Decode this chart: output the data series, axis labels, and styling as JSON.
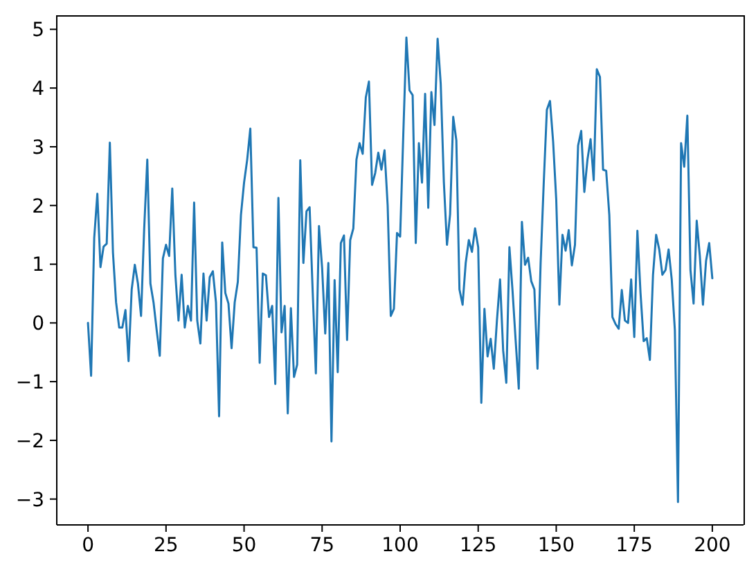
{
  "chart_data": {
    "type": "line",
    "color": "#1f77b4",
    "line_style": "solid",
    "grid": false,
    "legend": false,
    "xlim": [
      -10,
      210
    ],
    "xticks": [
      0,
      25,
      50,
      75,
      100,
      125,
      150,
      175,
      200
    ],
    "ylim": [
      -3.44,
      5.24
    ],
    "yticks": [
      {
        "value": -3,
        "label": "−3"
      },
      {
        "value": -2,
        "label": "−2"
      },
      {
        "value": -1,
        "label": "−1"
      },
      0,
      1,
      2,
      3,
      4,
      5
    ],
    "x": [
      0,
      1,
      2,
      3,
      4,
      5,
      6,
      7,
      8,
      9,
      10,
      11,
      12,
      13,
      14,
      15,
      16,
      17,
      18,
      19,
      20,
      21,
      22,
      23,
      24,
      25,
      26,
      27,
      28,
      29,
      30,
      31,
      32,
      33,
      34,
      35,
      36,
      37,
      38,
      39,
      40,
      41,
      42,
      43,
      44,
      45,
      46,
      47,
      48,
      49,
      50,
      51,
      52,
      53,
      54,
      55,
      56,
      57,
      58,
      59,
      60,
      61,
      62,
      63,
      64,
      65,
      66,
      67,
      68,
      69,
      70,
      71,
      72,
      73,
      74,
      75,
      76,
      77,
      78,
      79,
      80,
      81,
      82,
      83,
      84,
      85,
      86,
      87,
      88,
      89,
      90,
      91,
      92,
      93,
      94,
      95,
      96,
      97,
      98,
      99,
      100,
      101,
      102,
      103,
      104,
      105,
      106,
      107,
      108,
      109,
      110,
      111,
      112,
      113,
      114,
      115,
      116,
      117,
      118,
      119,
      120,
      121,
      122,
      123,
      124,
      125,
      126,
      127,
      128,
      129,
      130,
      131,
      132,
      133,
      134,
      135,
      136,
      137,
      138,
      139,
      140,
      141,
      142,
      143,
      144,
      145,
      146,
      147,
      148,
      149,
      150,
      151,
      152,
      153,
      154,
      155,
      156,
      157,
      158,
      159,
      160,
      161,
      162,
      163,
      164,
      165,
      166,
      167,
      168,
      169,
      170,
      171,
      172,
      173,
      174,
      175,
      176,
      177,
      178,
      179,
      180,
      181,
      182,
      183,
      184,
      185,
      186,
      187,
      188,
      189,
      190,
      191,
      192,
      193,
      194,
      195,
      196,
      197,
      198,
      199,
      200
    ],
    "values": [
      0.0,
      -0.9,
      1.45,
      2.2,
      0.95,
      1.3,
      1.35,
      3.07,
      1.2,
      0.35,
      -0.08,
      -0.08,
      0.22,
      -0.65,
      0.57,
      0.99,
      0.67,
      0.12,
      1.6,
      2.78,
      0.67,
      0.35,
      -0.12,
      -0.56,
      1.1,
      1.33,
      1.14,
      2.29,
      0.82,
      0.04,
      0.82,
      -0.08,
      0.29,
      0.04,
      2.05,
      0.04,
      -0.35,
      0.84,
      0.04,
      0.78,
      0.88,
      0.35,
      -1.59,
      1.37,
      0.51,
      0.33,
      -0.43,
      0.35,
      0.7,
      1.84,
      2.39,
      2.78,
      3.31,
      1.29,
      1.28,
      -0.68,
      0.84,
      0.81,
      0.1,
      0.29,
      -1.04,
      2.13,
      -0.16,
      0.29,
      -1.54,
      0.25,
      -0.92,
      -0.71,
      2.77,
      1.02,
      1.9,
      1.97,
      0.51,
      -0.86,
      1.65,
      0.94,
      -0.18,
      1.02,
      -2.02,
      0.73,
      -0.84,
      1.36,
      1.49,
      -0.29,
      1.41,
      1.61,
      2.78,
      3.06,
      2.88,
      3.84,
      4.11,
      2.35,
      2.55,
      2.9,
      2.61,
      2.94,
      2.0,
      0.12,
      0.24,
      1.53,
      1.47,
      3.2,
      4.86,
      3.96,
      3.88,
      1.36,
      3.06,
      2.39,
      3.9,
      1.96,
      3.93,
      3.37,
      4.84,
      4.07,
      2.4,
      1.33,
      1.85,
      3.51,
      3.11,
      0.57,
      0.31,
      1.02,
      1.41,
      1.21,
      1.61,
      1.29,
      -1.36,
      0.24,
      -0.57,
      -0.27,
      -0.78,
      0.04,
      0.74,
      -0.47,
      -1.02,
      1.29,
      0.55,
      -0.3,
      -1.12,
      1.72,
      0.99,
      1.11,
      0.71,
      0.57,
      -0.78,
      1.02,
      2.39,
      3.63,
      3.78,
      3.09,
      2.1,
      0.31,
      1.5,
      1.23,
      1.58,
      0.98,
      1.33,
      3.02,
      3.27,
      2.23,
      2.78,
      3.13,
      2.43,
      4.32,
      4.19,
      2.61,
      2.59,
      1.84,
      0.1,
      -0.02,
      -0.1,
      0.56,
      0.04,
      0.0,
      0.74,
      -0.24,
      1.57,
      0.51,
      -0.31,
      -0.26,
      -0.63,
      0.82,
      1.5,
      1.25,
      0.82,
      0.9,
      1.25,
      0.74,
      -0.12,
      -3.05,
      3.06,
      2.66,
      3.53,
      0.9,
      0.33,
      1.74,
      1.14,
      0.31,
      1.06,
      1.36,
      0.76
    ]
  }
}
